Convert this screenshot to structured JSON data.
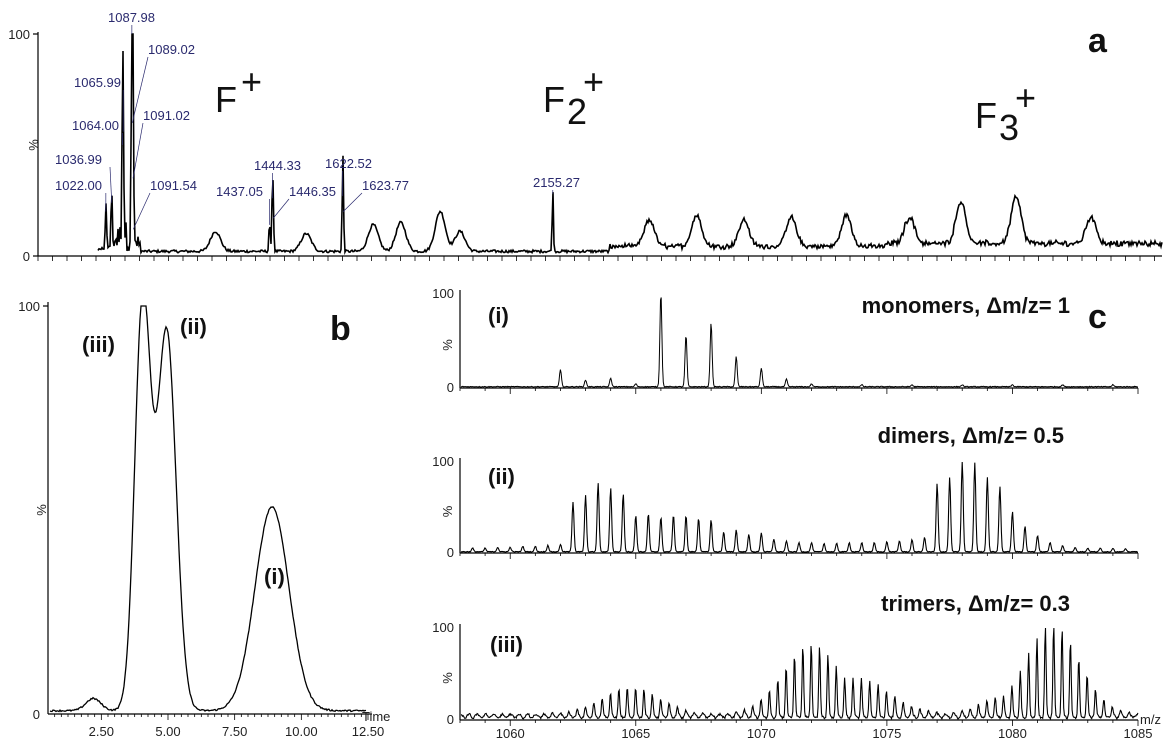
{
  "chart_data": [
    {
      "type": "line",
      "panel": "a",
      "ylabel": "%",
      "yticks": [
        "0",
        "100"
      ],
      "ylim": [
        0,
        100
      ],
      "region_labels": [
        {
          "base": "F",
          "sub": "",
          "sup": "+",
          "x": 1150
        },
        {
          "base": "F",
          "sub": "2",
          "sup": "+",
          "x": 2150
        },
        {
          "base": "F",
          "sub": "3",
          "sup": "+",
          "x": 3250
        }
      ],
      "xlim": [
        850,
        3700
      ],
      "peaks": [
        {
          "x": 1022.0,
          "y": 20,
          "label": "1022.00"
        },
        {
          "x": 1036.99,
          "y": 24,
          "label": "1036.99"
        },
        {
          "x": 1064.0,
          "y": 50,
          "label": "1064.00"
        },
        {
          "x": 1065.99,
          "y": 56,
          "label": "1065.99"
        },
        {
          "x": 1087.98,
          "y": 100,
          "label": "1087.98"
        },
        {
          "x": 1089.02,
          "y": 60,
          "label": "1089.02"
        },
        {
          "x": 1091.02,
          "y": 35,
          "label": "1091.02"
        },
        {
          "x": 1091.54,
          "y": 12,
          "label": "1091.54"
        },
        {
          "x": 1437.05,
          "y": 14,
          "label": "1437.05"
        },
        {
          "x": 1444.33,
          "y": 26,
          "label": "1444.33"
        },
        {
          "x": 1446.35,
          "y": 17,
          "label": "1446.35"
        },
        {
          "x": 1622.52,
          "y": 27,
          "label": "1622.52"
        },
        {
          "x": 1623.77,
          "y": 20,
          "label": "1623.77"
        },
        {
          "x": 2155.27,
          "y": 28,
          "label": "2155.27"
        }
      ],
      "broad_bumps": [
        {
          "x": 1300,
          "y": 9
        },
        {
          "x": 1530,
          "y": 8
        },
        {
          "x": 1700,
          "y": 12
        },
        {
          "x": 1770,
          "y": 13
        },
        {
          "x": 1870,
          "y": 18
        },
        {
          "x": 1920,
          "y": 9
        },
        {
          "x": 2400,
          "y": 12
        },
        {
          "x": 2520,
          "y": 14
        },
        {
          "x": 2640,
          "y": 12
        },
        {
          "x": 2760,
          "y": 13
        },
        {
          "x": 2900,
          "y": 14
        },
        {
          "x": 3060,
          "y": 12
        },
        {
          "x": 3190,
          "y": 19
        },
        {
          "x": 3330,
          "y": 21
        },
        {
          "x": 3520,
          "y": 12
        }
      ]
    },
    {
      "type": "line",
      "panel": "b",
      "ylabel": "%",
      "xlabel": "Time",
      "xlim": [
        0.5,
        12.5
      ],
      "ylim": [
        0,
        100
      ],
      "xticks": [
        "2.50",
        "5.00",
        "7.50",
        "10.00",
        "12.50"
      ],
      "xtick_values": [
        2.5,
        5.0,
        7.5,
        10.0,
        12.5
      ],
      "yticks": [
        "0",
        "100"
      ],
      "peaks": [
        {
          "x": 2.2,
          "y": 3,
          "width": 0.4
        },
        {
          "x": 4.05,
          "y": 100,
          "width": 0.42,
          "label": "(iii)"
        },
        {
          "x": 4.95,
          "y": 93,
          "width": 0.5,
          "label": "(ii)"
        },
        {
          "x": 8.9,
          "y": 50,
          "width": 0.9,
          "label": "(i)"
        }
      ]
    },
    {
      "type": "line",
      "panel": "c",
      "xlabel": "m/z",
      "xlim": [
        1058,
        1085
      ],
      "xticks": [
        "1060",
        "1065",
        "1070",
        "1075",
        "1080",
        "1085"
      ],
      "xtick_values": [
        1060,
        1065,
        1070,
        1075,
        1080,
        1085
      ],
      "yticks": [
        "0",
        "100"
      ],
      "ylabel": "%",
      "series": [
        {
          "name": "monomers, Δm/z= 1",
          "roman": "(i)",
          "spacing": 1,
          "peaks": [
            {
              "x": 1062,
              "y": 18
            },
            {
              "x": 1063,
              "y": 7
            },
            {
              "x": 1064,
              "y": 9
            },
            {
              "x": 1065,
              "y": 3
            },
            {
              "x": 1066,
              "y": 100
            },
            {
              "x": 1067,
              "y": 55
            },
            {
              "x": 1068,
              "y": 68
            },
            {
              "x": 1069,
              "y": 32
            },
            {
              "x": 1070,
              "y": 20
            },
            {
              "x": 1071,
              "y": 8
            },
            {
              "x": 1072,
              "y": 3
            },
            {
              "x": 1074,
              "y": 2
            },
            {
              "x": 1076,
              "y": 2
            },
            {
              "x": 1078,
              "y": 2
            },
            {
              "x": 1080,
              "y": 2
            },
            {
              "x": 1082,
              "y": 2
            },
            {
              "x": 1084,
              "y": 2
            }
          ]
        },
        {
          "name": "dimers, Δm/z= 0.5",
          "roman": "(ii)",
          "spacing": 0.5,
          "peaks": [
            {
              "x": 1058.5,
              "y": 4
            },
            {
              "x": 1059.0,
              "y": 4
            },
            {
              "x": 1059.5,
              "y": 5
            },
            {
              "x": 1060.0,
              "y": 5
            },
            {
              "x": 1060.5,
              "y": 6
            },
            {
              "x": 1061.0,
              "y": 6
            },
            {
              "x": 1061.5,
              "y": 7
            },
            {
              "x": 1062.0,
              "y": 8
            },
            {
              "x": 1062.5,
              "y": 55
            },
            {
              "x": 1063.0,
              "y": 62
            },
            {
              "x": 1063.5,
              "y": 76
            },
            {
              "x": 1064.0,
              "y": 70
            },
            {
              "x": 1064.5,
              "y": 64
            },
            {
              "x": 1065.0,
              "y": 40
            },
            {
              "x": 1065.5,
              "y": 42
            },
            {
              "x": 1066.0,
              "y": 38
            },
            {
              "x": 1066.5,
              "y": 40
            },
            {
              "x": 1067.0,
              "y": 40
            },
            {
              "x": 1067.5,
              "y": 37
            },
            {
              "x": 1068.0,
              "y": 35
            },
            {
              "x": 1068.5,
              "y": 22
            },
            {
              "x": 1069.0,
              "y": 24
            },
            {
              "x": 1069.5,
              "y": 19
            },
            {
              "x": 1070.0,
              "y": 21
            },
            {
              "x": 1070.5,
              "y": 14
            },
            {
              "x": 1071.0,
              "y": 12
            },
            {
              "x": 1071.5,
              "y": 10
            },
            {
              "x": 1072.0,
              "y": 10
            },
            {
              "x": 1072.5,
              "y": 9
            },
            {
              "x": 1073.0,
              "y": 9
            },
            {
              "x": 1073.5,
              "y": 10
            },
            {
              "x": 1074.0,
              "y": 10
            },
            {
              "x": 1074.5,
              "y": 10
            },
            {
              "x": 1075.0,
              "y": 11
            },
            {
              "x": 1075.5,
              "y": 12
            },
            {
              "x": 1076.0,
              "y": 13
            },
            {
              "x": 1076.5,
              "y": 16
            },
            {
              "x": 1077.0,
              "y": 75
            },
            {
              "x": 1077.5,
              "y": 82
            },
            {
              "x": 1078.0,
              "y": 100
            },
            {
              "x": 1078.5,
              "y": 98
            },
            {
              "x": 1079.0,
              "y": 82
            },
            {
              "x": 1079.5,
              "y": 72
            },
            {
              "x": 1080.0,
              "y": 44
            },
            {
              "x": 1080.5,
              "y": 28
            },
            {
              "x": 1081.0,
              "y": 18
            },
            {
              "x": 1081.5,
              "y": 10
            },
            {
              "x": 1082.0,
              "y": 7
            },
            {
              "x": 1082.5,
              "y": 5
            },
            {
              "x": 1083.0,
              "y": 4
            },
            {
              "x": 1083.5,
              "y": 4
            },
            {
              "x": 1084.0,
              "y": 4
            },
            {
              "x": 1084.5,
              "y": 3
            }
          ]
        },
        {
          "name": "trimers, Δm/z= 0.3",
          "roman": "(iii)",
          "spacing": 0.333,
          "envelopes": [
            {
              "center": 1064.8,
              "width": 1.6,
              "height": 30
            },
            {
              "center": 1072.0,
              "width": 1.6,
              "height": 78
            },
            {
              "center": 1073.8,
              "width": 1.8,
              "height": 40
            },
            {
              "center": 1081.6,
              "width": 1.5,
              "height": 100
            },
            {
              "center": 1079.6,
              "width": 1.2,
              "height": 20
            }
          ],
          "baseline": 4
        }
      ]
    }
  ]
}
